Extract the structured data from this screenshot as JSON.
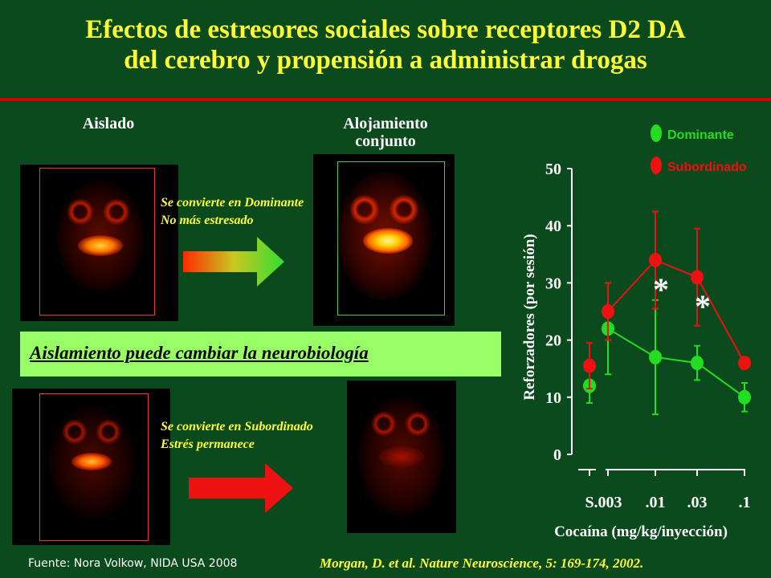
{
  "title": {
    "line1": "Efectos de estresores sociales sobre receptores D2 DA",
    "line2": "del cerebro y propensión a administrar drogas"
  },
  "labels": {
    "isolated": "Aislado",
    "housed_line1": "Alojamiento",
    "housed_line2": "conjunto"
  },
  "transitions": {
    "dominant_line1": "Se convierte en Dominante",
    "dominant_line2": "No más estresado",
    "subordinate_line1": "Se convierte en Subordinado",
    "subordinate_line2": "Estrés permanece"
  },
  "banner": "Aislamiento puede cambiar la neurobiología",
  "footer": {
    "source": "Fuente: Nora Volkow, NIDA USA 2008",
    "citation": "Morgan, D. et al. Nature Neuroscience, 5: 169-174, 2002."
  },
  "colors": {
    "dominant": "#22dd22",
    "subordinate": "#ee1111",
    "title": "#ffff33",
    "background": "#0a4a1c"
  },
  "chart_data": {
    "type": "line",
    "categories": [
      "S",
      ".003",
      ".01",
      ".03",
      ".1"
    ],
    "xlabel": "Cocaína (mg/kg/inyección)",
    "ylabel": "Reforzadores (por sesión)",
    "ylim": [
      0,
      50
    ],
    "yticks": [
      "0",
      "10",
      "20",
      "30",
      "40",
      "50"
    ],
    "legend_position": "top-right",
    "series": [
      {
        "name": "Dominante",
        "values": [
          12,
          22,
          17,
          16,
          10
        ],
        "errors": [
          3,
          8,
          10,
          3,
          2.5
        ],
        "connected_from_index": 1
      },
      {
        "name": "Subordinado",
        "values": [
          15.5,
          25,
          34,
          31,
          16
        ],
        "errors": [
          4,
          5,
          8.5,
          8.5,
          1
        ],
        "connected_from_index": 1
      }
    ],
    "annotations": [
      {
        "text": "*",
        "x": ".01",
        "y": 27
      },
      {
        "text": "*",
        "x": ".03",
        "y": 24
      }
    ]
  }
}
